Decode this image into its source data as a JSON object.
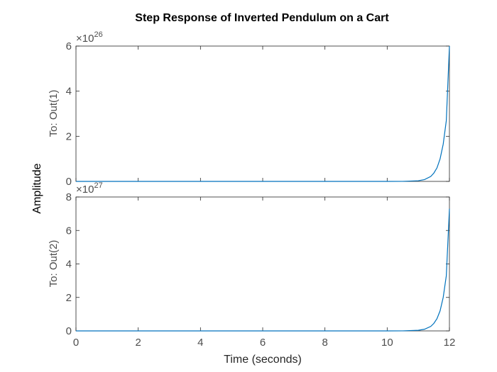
{
  "chart_data": {
    "type": "line",
    "title": "Step Response of Inverted Pendulum on a Cart",
    "xlabel": "Time (seconds)",
    "ylabel": "Amplitude",
    "xlim": [
      0,
      12
    ],
    "x_ticks": [
      "0",
      "2",
      "4",
      "6",
      "8",
      "10",
      "12"
    ],
    "line_color": "#0072bd",
    "subplots": [
      {
        "ylabel": "To: Out(1)",
        "ylim": [
          0,
          6
        ],
        "y_ticks": [
          "0",
          "2",
          "4",
          "6"
        ],
        "exponent_base": "×10",
        "exponent_power": "26",
        "series": {
          "name": "To: Out(1)",
          "x": [
            0,
            2,
            4,
            6,
            8,
            10,
            10.5,
            11,
            11.2,
            11.4,
            11.5,
            11.6,
            11.7,
            11.8,
            11.9,
            12
          ],
          "y": [
            0,
            0,
            0,
            0,
            0,
            0.0002,
            0.0025,
            0.03,
            0.08,
            0.22,
            0.37,
            0.6,
            1.0,
            1.65,
            2.7,
            6.0
          ]
        }
      },
      {
        "ylabel": "To: Out(2)",
        "ylim": [
          0,
          8
        ],
        "y_ticks": [
          "0",
          "2",
          "4",
          "6",
          "8"
        ],
        "exponent_base": "×10",
        "exponent_power": "27",
        "series": {
          "name": "To: Out(2)",
          "x": [
            0,
            2,
            4,
            6,
            8,
            10,
            10.5,
            11,
            11.2,
            11.4,
            11.5,
            11.6,
            11.7,
            11.8,
            11.9,
            12
          ],
          "y": [
            0,
            0,
            0,
            0,
            0,
            0.0002,
            0.003,
            0.036,
            0.1,
            0.27,
            0.45,
            0.73,
            1.2,
            2.0,
            3.3,
            7.3
          ]
        }
      }
    ]
  }
}
